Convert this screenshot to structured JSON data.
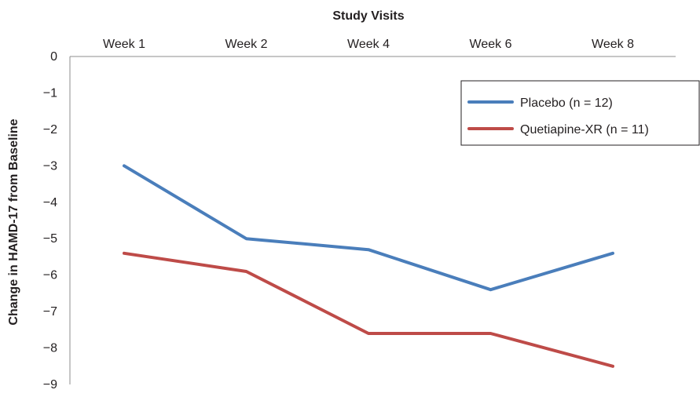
{
  "chart_data": {
    "type": "line",
    "xlabel": "Study Visits",
    "ylabel": "Change in HAMD-17 from Baseline",
    "categories": [
      "Week 1",
      "Week 2",
      "Week 4",
      "Week 6",
      "Week 8"
    ],
    "ylim": [
      -9,
      0
    ],
    "yticks": [
      "0",
      "−1",
      "−2",
      "−3",
      "−4",
      "−5",
      "−6",
      "−7",
      "−8",
      "−9"
    ],
    "x_axis_position": "top",
    "grid": false,
    "legend_position": "top-right",
    "series": [
      {
        "name": "Placebo (n = 12)",
        "color": "#4a7ebb",
        "values": [
          -3.0,
          -5.0,
          -5.3,
          -6.4,
          -5.4
        ]
      },
      {
        "name": "Quetiapine-XR (n = 11)",
        "color": "#be4b48",
        "values": [
          -5.4,
          -5.9,
          -7.6,
          -7.6,
          -8.5
        ]
      }
    ]
  }
}
